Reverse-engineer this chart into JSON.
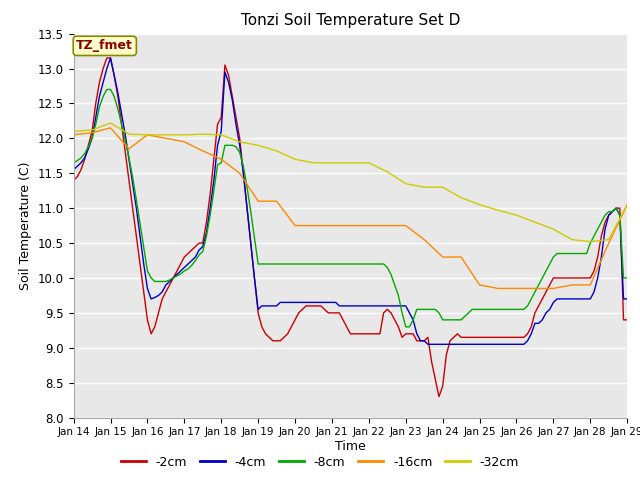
{
  "title": "Tonzi Soil Temperature Set D",
  "xlabel": "Time",
  "ylabel": "Soil Temperature (C)",
  "annotation": "TZ_fmet",
  "ylim": [
    8.0,
    13.5
  ],
  "xlim": [
    0,
    15
  ],
  "fig_bg_color": "#f0f0f0",
  "plot_bg_color": "#e0e0e0",
  "legend_entries": [
    "-2cm",
    "-4cm",
    "-8cm",
    "-16cm",
    "-32cm"
  ],
  "line_colors": [
    "#cc0000",
    "#0000cc",
    "#00aa00",
    "#ff8800",
    "#cccc00"
  ],
  "tick_labels": [
    "Jan 14",
    "Jan 15",
    "Jan 16",
    "Jan 17",
    "Jan 18",
    "Jan 19",
    "Jan 20",
    "Jan 21",
    "Jan 22",
    "Jan 23",
    "Jan 24",
    "Jan 25",
    "Jan 26",
    "Jan 27",
    "Jan 28",
    "Jan 29"
  ],
  "yticks": [
    8.0,
    8.5,
    9.0,
    9.5,
    10.0,
    10.5,
    11.0,
    11.5,
    12.0,
    12.5,
    13.0,
    13.5
  ],
  "series": {
    "depth_2cm": {
      "x": [
        0,
        0.1,
        0.2,
        0.3,
        0.4,
        0.5,
        0.6,
        0.7,
        0.8,
        0.9,
        1.0,
        1.1,
        1.2,
        1.3,
        1.4,
        1.5,
        1.6,
        1.7,
        1.8,
        1.9,
        2.0,
        2.1,
        2.2,
        2.3,
        2.4,
        2.5,
        2.6,
        2.7,
        2.8,
        2.9,
        3.0,
        3.1,
        3.2,
        3.3,
        3.4,
        3.5,
        3.6,
        3.7,
        3.8,
        3.9,
        4.0,
        4.1,
        4.2,
        4.3,
        4.4,
        4.5,
        4.6,
        4.7,
        4.8,
        4.9,
        5.0,
        5.1,
        5.2,
        5.3,
        5.4,
        5.5,
        5.6,
        5.7,
        5.8,
        5.9,
        6.0,
        6.1,
        6.2,
        6.3,
        6.4,
        6.5,
        6.6,
        6.7,
        6.8,
        6.9,
        7.0,
        7.1,
        7.2,
        7.3,
        7.4,
        7.5,
        7.6,
        7.7,
        7.8,
        7.9,
        8.0,
        8.1,
        8.2,
        8.3,
        8.4,
        8.5,
        8.6,
        8.7,
        8.8,
        8.9,
        9.0,
        9.1,
        9.2,
        9.3,
        9.4,
        9.5,
        9.6,
        9.7,
        9.8,
        9.9,
        10.0,
        10.1,
        10.2,
        10.3,
        10.4,
        10.5,
        10.6,
        10.7,
        10.8,
        10.9,
        11.0,
        11.1,
        11.2,
        11.3,
        11.4,
        11.5,
        11.6,
        11.7,
        11.8,
        11.9,
        12.0,
        12.1,
        12.2,
        12.3,
        12.4,
        12.5,
        12.6,
        12.7,
        12.8,
        12.9,
        13.0,
        13.1,
        13.2,
        13.3,
        13.4,
        13.5,
        13.6,
        13.7,
        13.8,
        13.9,
        14.0,
        14.1,
        14.2,
        14.3,
        14.4,
        14.5,
        14.6,
        14.7,
        14.8,
        14.9,
        15.0
      ],
      "y": [
        11.4,
        11.45,
        11.55,
        11.7,
        11.9,
        12.1,
        12.5,
        12.8,
        13.0,
        13.15,
        13.15,
        12.9,
        12.6,
        12.2,
        11.8,
        11.4,
        11.0,
        10.6,
        10.2,
        9.8,
        9.4,
        9.2,
        9.3,
        9.5,
        9.7,
        9.8,
        9.9,
        10.0,
        10.1,
        10.2,
        10.3,
        10.35,
        10.4,
        10.45,
        10.5,
        10.5,
        10.8,
        11.2,
        11.7,
        12.2,
        12.3,
        13.05,
        12.9,
        12.6,
        12.3,
        12.0,
        11.5,
        11.0,
        10.5,
        10.0,
        9.5,
        9.3,
        9.2,
        9.15,
        9.1,
        9.1,
        9.1,
        9.15,
        9.2,
        9.3,
        9.4,
        9.5,
        9.55,
        9.6,
        9.6,
        9.6,
        9.6,
        9.6,
        9.55,
        9.5,
        9.5,
        9.5,
        9.5,
        9.4,
        9.3,
        9.2,
        9.2,
        9.2,
        9.2,
        9.2,
        9.2,
        9.2,
        9.2,
        9.2,
        9.5,
        9.55,
        9.5,
        9.4,
        9.3,
        9.15,
        9.2,
        9.2,
        9.2,
        9.1,
        9.1,
        9.1,
        9.15,
        8.8,
        8.55,
        8.3,
        8.45,
        8.9,
        9.1,
        9.15,
        9.2,
        9.15,
        9.15,
        9.15,
        9.15,
        9.15,
        9.15,
        9.15,
        9.15,
        9.15,
        9.15,
        9.15,
        9.15,
        9.15,
        9.15,
        9.15,
        9.15,
        9.15,
        9.15,
        9.2,
        9.3,
        9.5,
        9.6,
        9.7,
        9.8,
        9.9,
        10.0,
        10.0,
        10.0,
        10.0,
        10.0,
        10.0,
        10.0,
        10.0,
        10.0,
        10.0,
        10.0,
        10.1,
        10.3,
        10.6,
        10.8,
        10.9,
        10.95,
        11.0,
        11.0,
        9.4,
        9.4
      ]
    },
    "depth_4cm": {
      "x": [
        0,
        0.1,
        0.2,
        0.3,
        0.4,
        0.5,
        0.6,
        0.7,
        0.8,
        0.9,
        1.0,
        1.1,
        1.2,
        1.3,
        1.4,
        1.5,
        1.6,
        1.7,
        1.8,
        1.9,
        2.0,
        2.1,
        2.2,
        2.3,
        2.4,
        2.5,
        2.6,
        2.7,
        2.8,
        2.9,
        3.0,
        3.1,
        3.2,
        3.3,
        3.4,
        3.5,
        3.6,
        3.7,
        3.8,
        3.9,
        4.0,
        4.1,
        4.2,
        4.3,
        4.4,
        4.5,
        4.6,
        4.7,
        4.8,
        4.9,
        5.0,
        5.1,
        5.2,
        5.3,
        5.4,
        5.5,
        5.6,
        5.7,
        5.8,
        5.9,
        6.0,
        6.1,
        6.2,
        6.3,
        6.4,
        6.5,
        6.6,
        6.7,
        6.8,
        6.9,
        7.0,
        7.1,
        7.2,
        7.3,
        7.4,
        7.5,
        7.6,
        7.7,
        7.8,
        7.9,
        8.0,
        8.1,
        8.2,
        8.3,
        8.4,
        8.5,
        8.6,
        8.7,
        8.8,
        8.9,
        9.0,
        9.1,
        9.2,
        9.3,
        9.4,
        9.5,
        9.6,
        9.7,
        9.8,
        9.9,
        10.0,
        10.1,
        10.2,
        10.3,
        10.4,
        10.5,
        10.6,
        10.7,
        10.8,
        10.9,
        11.0,
        11.1,
        11.2,
        11.3,
        11.4,
        11.5,
        11.6,
        11.7,
        11.8,
        11.9,
        12.0,
        12.1,
        12.2,
        12.3,
        12.4,
        12.5,
        12.6,
        12.7,
        12.8,
        12.9,
        13.0,
        13.1,
        13.2,
        13.3,
        13.4,
        13.5,
        13.6,
        13.7,
        13.8,
        13.9,
        14.0,
        14.1,
        14.2,
        14.3,
        14.4,
        14.5,
        14.6,
        14.7,
        14.8,
        14.9,
        15.0
      ],
      "y": [
        11.55,
        11.6,
        11.65,
        11.72,
        11.85,
        12.0,
        12.3,
        12.6,
        12.8,
        13.0,
        13.15,
        12.9,
        12.65,
        12.35,
        12.05,
        11.7,
        11.35,
        11.0,
        10.6,
        10.2,
        9.85,
        9.7,
        9.72,
        9.75,
        9.8,
        9.9,
        9.95,
        10.0,
        10.05,
        10.1,
        10.15,
        10.2,
        10.25,
        10.3,
        10.4,
        10.45,
        10.65,
        11.0,
        11.4,
        11.9,
        12.1,
        12.95,
        12.8,
        12.55,
        12.2,
        11.9,
        11.5,
        11.0,
        10.5,
        10.0,
        9.55,
        9.6,
        9.6,
        9.6,
        9.6,
        9.6,
        9.65,
        9.65,
        9.65,
        9.65,
        9.65,
        9.65,
        9.65,
        9.65,
        9.65,
        9.65,
        9.65,
        9.65,
        9.65,
        9.65,
        9.65,
        9.65,
        9.6,
        9.6,
        9.6,
        9.6,
        9.6,
        9.6,
        9.6,
        9.6,
        9.6,
        9.6,
        9.6,
        9.6,
        9.6,
        9.6,
        9.6,
        9.6,
        9.6,
        9.6,
        9.6,
        9.5,
        9.4,
        9.2,
        9.1,
        9.1,
        9.05,
        9.05,
        9.05,
        9.05,
        9.05,
        9.05,
        9.05,
        9.05,
        9.05,
        9.05,
        9.05,
        9.05,
        9.05,
        9.05,
        9.05,
        9.05,
        9.05,
        9.05,
        9.05,
        9.05,
        9.05,
        9.05,
        9.05,
        9.05,
        9.05,
        9.05,
        9.05,
        9.1,
        9.2,
        9.35,
        9.35,
        9.4,
        9.5,
        9.55,
        9.65,
        9.7,
        9.7,
        9.7,
        9.7,
        9.7,
        9.7,
        9.7,
        9.7,
        9.7,
        9.7,
        9.8,
        10.0,
        10.3,
        10.7,
        10.9,
        10.95,
        11.0,
        10.9,
        9.7,
        9.7
      ]
    },
    "depth_8cm": {
      "x": [
        0,
        0.1,
        0.2,
        0.3,
        0.4,
        0.5,
        0.6,
        0.7,
        0.8,
        0.9,
        1.0,
        1.1,
        1.2,
        1.3,
        1.4,
        1.5,
        1.6,
        1.7,
        1.8,
        1.9,
        2.0,
        2.1,
        2.2,
        2.3,
        2.4,
        2.5,
        2.6,
        2.7,
        2.8,
        2.9,
        3.0,
        3.1,
        3.2,
        3.3,
        3.4,
        3.5,
        3.6,
        3.7,
        3.8,
        3.9,
        4.0,
        4.1,
        4.2,
        4.3,
        4.4,
        4.5,
        4.6,
        4.7,
        4.8,
        4.9,
        5.0,
        5.1,
        5.2,
        5.3,
        5.4,
        5.5,
        5.6,
        5.7,
        5.8,
        5.9,
        6.0,
        6.1,
        6.2,
        6.3,
        6.4,
        6.5,
        6.6,
        6.7,
        6.8,
        6.9,
        7.0,
        7.1,
        7.2,
        7.3,
        7.4,
        7.5,
        7.6,
        7.7,
        7.8,
        7.9,
        8.0,
        8.1,
        8.2,
        8.3,
        8.4,
        8.5,
        8.6,
        8.7,
        8.8,
        8.9,
        9.0,
        9.1,
        9.2,
        9.3,
        9.4,
        9.5,
        9.6,
        9.7,
        9.8,
        9.9,
        10.0,
        10.1,
        10.2,
        10.3,
        10.4,
        10.5,
        10.6,
        10.7,
        10.8,
        10.9,
        11.0,
        11.1,
        11.2,
        11.3,
        11.4,
        11.5,
        11.6,
        11.7,
        11.8,
        11.9,
        12.0,
        12.1,
        12.2,
        12.3,
        12.4,
        12.5,
        12.6,
        12.7,
        12.8,
        12.9,
        13.0,
        13.1,
        13.2,
        13.3,
        13.4,
        13.5,
        13.6,
        13.7,
        13.8,
        13.9,
        14.0,
        14.1,
        14.2,
        14.3,
        14.4,
        14.5,
        14.6,
        14.7,
        14.8,
        14.9,
        15.0
      ],
      "y": [
        11.65,
        11.68,
        11.72,
        11.78,
        11.88,
        12.0,
        12.2,
        12.45,
        12.6,
        12.7,
        12.7,
        12.6,
        12.42,
        12.2,
        11.97,
        11.72,
        11.44,
        11.12,
        10.78,
        10.45,
        10.1,
        10.0,
        9.95,
        9.95,
        9.95,
        9.95,
        9.97,
        10.0,
        10.03,
        10.06,
        10.1,
        10.13,
        10.18,
        10.25,
        10.33,
        10.38,
        10.6,
        10.9,
        11.25,
        11.62,
        11.65,
        11.9,
        11.9,
        11.9,
        11.88,
        11.8,
        11.6,
        11.3,
        10.95,
        10.58,
        10.2,
        10.2,
        10.2,
        10.2,
        10.2,
        10.2,
        10.2,
        10.2,
        10.2,
        10.2,
        10.2,
        10.2,
        10.2,
        10.2,
        10.2,
        10.2,
        10.2,
        10.2,
        10.2,
        10.2,
        10.2,
        10.2,
        10.2,
        10.2,
        10.2,
        10.2,
        10.2,
        10.2,
        10.2,
        10.2,
        10.2,
        10.2,
        10.2,
        10.2,
        10.2,
        10.15,
        10.05,
        9.9,
        9.75,
        9.5,
        9.3,
        9.3,
        9.4,
        9.55,
        9.55,
        9.55,
        9.55,
        9.55,
        9.55,
        9.5,
        9.4,
        9.4,
        9.4,
        9.4,
        9.4,
        9.4,
        9.45,
        9.5,
        9.55,
        9.55,
        9.55,
        9.55,
        9.55,
        9.55,
        9.55,
        9.55,
        9.55,
        9.55,
        9.55,
        9.55,
        9.55,
        9.55,
        9.55,
        9.6,
        9.7,
        9.8,
        9.9,
        10.0,
        10.1,
        10.2,
        10.3,
        10.35,
        10.35,
        10.35,
        10.35,
        10.35,
        10.35,
        10.35,
        10.35,
        10.35,
        10.5,
        10.6,
        10.7,
        10.8,
        10.9,
        10.95,
        10.95,
        11.0,
        10.9,
        10.0,
        10.0
      ]
    },
    "depth_16cm": {
      "x": [
        0,
        0.5,
        1.0,
        1.5,
        2.0,
        2.5,
        3.0,
        3.5,
        4.0,
        4.5,
        5.0,
        5.5,
        6.0,
        6.5,
        7.0,
        7.5,
        8.0,
        8.5,
        9.0,
        9.5,
        10.0,
        10.5,
        11.0,
        11.5,
        12.0,
        12.5,
        13.0,
        13.5,
        14.0,
        14.5,
        15.0
      ],
      "y": [
        12.05,
        12.08,
        12.15,
        11.85,
        12.05,
        12.0,
        11.95,
        11.82,
        11.7,
        11.5,
        11.1,
        11.1,
        10.75,
        10.75,
        10.75,
        10.75,
        10.75,
        10.75,
        10.75,
        10.55,
        10.3,
        10.3,
        9.9,
        9.85,
        9.85,
        9.85,
        9.85,
        9.9,
        9.9,
        10.5,
        11.05
      ]
    },
    "depth_32cm": {
      "x": [
        0,
        0.5,
        1.0,
        1.5,
        2.0,
        2.5,
        3.0,
        3.5,
        4.0,
        4.5,
        5.0,
        5.5,
        6.0,
        6.5,
        7.0,
        7.5,
        8.0,
        8.5,
        9.0,
        9.5,
        10.0,
        10.5,
        11.0,
        11.5,
        12.0,
        12.5,
        13.0,
        13.5,
        14.0,
        14.5,
        15.0
      ],
      "y": [
        12.1,
        12.12,
        12.22,
        12.06,
        12.05,
        12.05,
        12.05,
        12.06,
        12.05,
        11.95,
        11.9,
        11.82,
        11.7,
        11.65,
        11.65,
        11.65,
        11.65,
        11.52,
        11.35,
        11.3,
        11.3,
        11.15,
        11.05,
        10.97,
        10.9,
        10.8,
        10.7,
        10.55,
        10.52,
        10.55,
        11.05
      ]
    }
  }
}
